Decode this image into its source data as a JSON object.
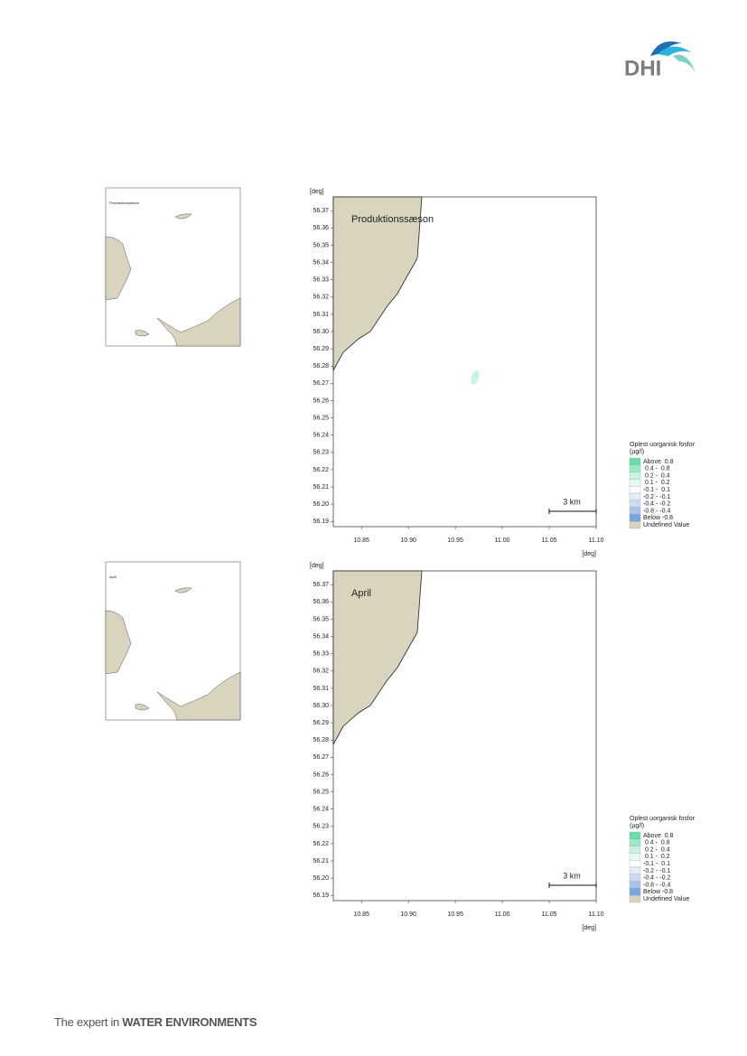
{
  "logo": "DHI",
  "footer": {
    "lead": "The expert in",
    "strong": "WATER ENVIRONMENTS"
  },
  "axes": {
    "unit": "[deg]",
    "xlim": [
      10.82,
      11.1
    ],
    "ylim": [
      56.187,
      56.378
    ],
    "xticks": [
      {
        "value": 10.85,
        "label": "10.85"
      },
      {
        "value": 10.9,
        "label": "10.90"
      },
      {
        "value": 10.95,
        "label": "10.95"
      },
      {
        "value": 11.0,
        "label": "11.00"
      },
      {
        "value": 11.05,
        "label": "11.05"
      },
      {
        "value": 11.1,
        "label": "11.10"
      }
    ],
    "yticks": [
      {
        "value": 56.19,
        "label": "56.19"
      },
      {
        "value": 56.2,
        "label": "56.20"
      },
      {
        "value": 56.21,
        "label": "56.21"
      },
      {
        "value": 56.22,
        "label": "56.22"
      },
      {
        "value": 56.23,
        "label": "56.23"
      },
      {
        "value": 56.24,
        "label": "56.24"
      },
      {
        "value": 56.25,
        "label": "56.25"
      },
      {
        "value": 56.26,
        "label": "56.26"
      },
      {
        "value": 56.27,
        "label": "56.27"
      },
      {
        "value": 56.28,
        "label": "56.28"
      },
      {
        "value": 56.29,
        "label": "56.29"
      },
      {
        "value": 56.3,
        "label": "56.30"
      },
      {
        "value": 56.31,
        "label": "56.31"
      },
      {
        "value": 56.32,
        "label": "56.32"
      },
      {
        "value": 56.33,
        "label": "56.33"
      },
      {
        "value": 56.34,
        "label": "56.34"
      },
      {
        "value": 56.35,
        "label": "56.35"
      },
      {
        "value": 56.36,
        "label": "56.36"
      },
      {
        "value": 56.37,
        "label": "56.37"
      }
    ]
  },
  "scale_bar": "3 km",
  "legend": {
    "title": "Oplest uorganisk fosfor",
    "unit": "(µg/l)",
    "items": [
      {
        "label": "Above  0.8",
        "color": "#66e0ab"
      },
      {
        "label": " 0.4 -  0.8",
        "color": "#99ebc7"
      },
      {
        "label": " 0.2 -  0.4",
        "color": "#c6f4df"
      },
      {
        "label": " 0.1 -  0.2",
        "color": "#e6faf0"
      },
      {
        "label": "-0.1 -  0.1",
        "color": "#ffffff"
      },
      {
        "label": "-0.2 - -0.1",
        "color": "#e4ecf9"
      },
      {
        "label": "-0.4 - -0.2",
        "color": "#cbdbf4"
      },
      {
        "label": "-0.8 - -0.4",
        "color": "#a8c3ee"
      },
      {
        "label": "Below -0.8",
        "color": "#78a5e6"
      },
      {
        "label": "Undefined Value",
        "color": "#d8d4bd"
      }
    ]
  },
  "maps": [
    {
      "label": "Produktionssæson"
    },
    {
      "label": "April"
    }
  ]
}
